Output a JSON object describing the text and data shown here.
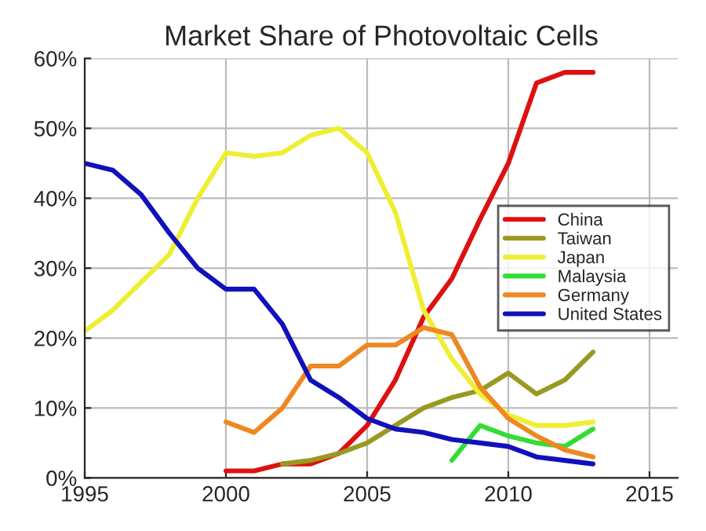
{
  "chart_data": {
    "type": "line",
    "title": "Market Share of Photovoltaic Cells",
    "xlim": [
      1995,
      2016
    ],
    "xticks": [
      1995,
      2000,
      2005,
      2010,
      2015
    ],
    "ylim": [
      0,
      60
    ],
    "yticks": [
      {
        "value": 0,
        "label": "0%"
      },
      {
        "value": 10,
        "label": "10%"
      },
      {
        "value": 20,
        "label": "20%"
      },
      {
        "value": 30,
        "label": "30%"
      },
      {
        "value": 40,
        "label": "40%"
      },
      {
        "value": 50,
        "label": "50%"
      },
      {
        "value": 60,
        "label": "60%"
      }
    ],
    "grid": true,
    "legend": "center right",
    "marker": "none",
    "line_style": "solid",
    "series": [
      {
        "name": "China",
        "color": "#dd1111",
        "x": [
          2000,
          2001,
          2002,
          2003,
          2004,
          2005,
          2006,
          2007,
          2008,
          2009,
          2010,
          2011,
          2012,
          2013
        ],
        "values": [
          1,
          1,
          2,
          2,
          3.5,
          7.5,
          14,
          23,
          28.5,
          37,
          45,
          56.5,
          58,
          58
        ]
      },
      {
        "name": "Taiwan",
        "color": "#999922",
        "x": [
          2002,
          2003,
          2004,
          2005,
          2006,
          2007,
          2008,
          2009,
          2010,
          2011,
          2012,
          2013
        ],
        "values": [
          2,
          2.5,
          3.5,
          5,
          7.5,
          10,
          11.5,
          12.5,
          15,
          12,
          14,
          18
        ]
      },
      {
        "name": "Japan",
        "color": "#eeee33",
        "x": [
          1995,
          1996,
          1997,
          1998,
          1999,
          2000,
          2001,
          2002,
          2003,
          2004,
          2005,
          2006,
          2007,
          2008,
          2009,
          2010,
          2011,
          2012,
          2013
        ],
        "values": [
          21,
          24,
          28,
          32,
          40,
          46.5,
          46,
          46.5,
          49,
          50,
          46.5,
          38,
          24,
          17,
          12,
          9,
          7.5,
          7.5,
          8
        ]
      },
      {
        "name": "Malaysia",
        "color": "#33dd33",
        "x": [
          2008,
          2009,
          2010,
          2011,
          2012,
          2013
        ],
        "values": [
          2.5,
          7.5,
          6,
          5,
          4.5,
          7
        ]
      },
      {
        "name": "Germany",
        "color": "#ee8822",
        "x": [
          2000,
          2001,
          2002,
          2003,
          2004,
          2005,
          2006,
          2007,
          2008,
          2009,
          2010,
          2011,
          2012,
          2013
        ],
        "values": [
          8,
          6.5,
          10,
          16,
          16,
          19,
          19,
          21.5,
          20.5,
          13,
          8.5,
          6,
          4,
          3
        ]
      },
      {
        "name": "United States",
        "color": "#1111bb",
        "x": [
          1995,
          1996,
          1997,
          1998,
          1999,
          2000,
          2001,
          2002,
          2003,
          2004,
          2005,
          2006,
          2007,
          2008,
          2009,
          2010,
          2011,
          2012,
          2013
        ],
        "values": [
          45,
          44,
          40.5,
          35,
          30,
          27,
          27,
          22,
          14,
          11.5,
          8.5,
          7,
          6.5,
          5.5,
          5,
          4.5,
          3,
          2.5,
          2
        ]
      }
    ]
  }
}
